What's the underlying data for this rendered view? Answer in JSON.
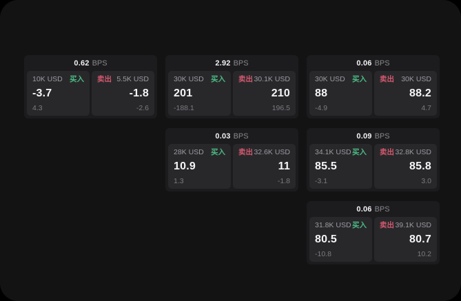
{
  "colors": {
    "green": "#4cba82",
    "red": "#d2586d"
  },
  "labels": {
    "buy": "买入",
    "sell": "卖出",
    "bps": "BPS"
  },
  "cards": [
    {
      "bps": "0.62",
      "buy": {
        "amount": "10K USD",
        "value": "-3.7",
        "delta": "4.3"
      },
      "sell": {
        "amount": "5.5K USD",
        "value": "-1.8",
        "delta": "-2.6"
      }
    },
    {
      "bps": "2.92",
      "buy": {
        "amount": "30K USD",
        "value": "201",
        "delta": "-188.1"
      },
      "sell": {
        "amount": "30.1K USD",
        "value": "210",
        "delta": "196.5"
      }
    },
    {
      "bps": "0.06",
      "buy": {
        "amount": "30K USD",
        "value": "88",
        "delta": "-4.9"
      },
      "sell": {
        "amount": "30K USD",
        "value": "88.2",
        "delta": "4.7"
      }
    },
    {
      "bps": "0.03",
      "buy": {
        "amount": "28K USD",
        "value": "10.9",
        "delta": "1.3"
      },
      "sell": {
        "amount": "32.6K USD",
        "value": "11",
        "delta": "-1.8"
      }
    },
    {
      "bps": "0.09",
      "buy": {
        "amount": "34.1K USD",
        "value": "85.5",
        "delta": "-3.1"
      },
      "sell": {
        "amount": "32.8K USD",
        "value": "85.8",
        "delta": "3.0"
      }
    },
    {
      "bps": "0.06",
      "buy": {
        "amount": "31.8K USD",
        "value": "80.5",
        "delta": "-10.8"
      },
      "sell": {
        "amount": "39.1K USD",
        "value": "80.7",
        "delta": "10.2"
      }
    }
  ]
}
